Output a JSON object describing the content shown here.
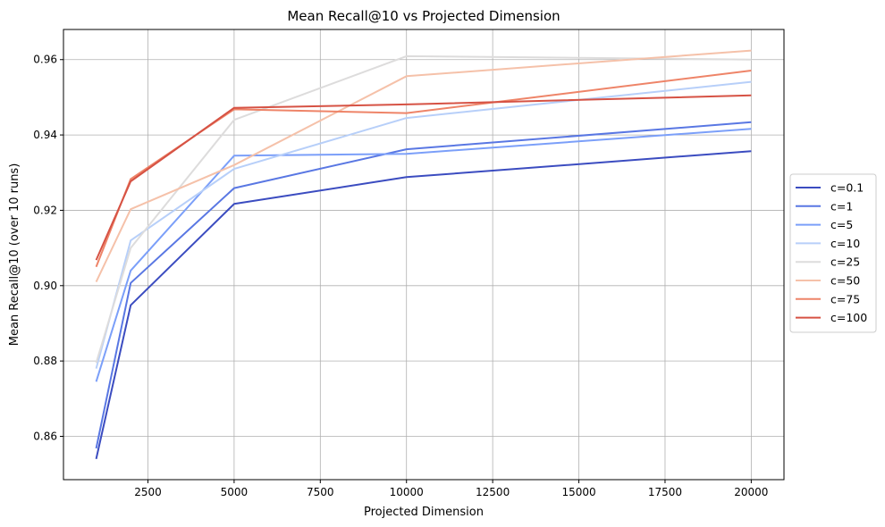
{
  "chart_data": {
    "type": "line",
    "title": "Mean Recall@10 vs Projected Dimension",
    "xlabel": "Projected Dimension",
    "ylabel": "Mean Recall@10 (over 10 runs)",
    "x": [
      1000,
      2000,
      5000,
      10000,
      20000
    ],
    "xlim": [
      50,
      20950
    ],
    "ylim": [
      0.8485,
      0.968
    ],
    "xticks": [
      2500,
      5000,
      7500,
      10000,
      12500,
      15000,
      17500,
      20000
    ],
    "yticks": [
      0.86,
      0.88,
      0.9,
      0.92,
      0.94,
      0.96
    ],
    "xtick_labels": [
      "2500",
      "5000",
      "7500",
      "10000",
      "12500",
      "15000",
      "17500",
      "20000"
    ],
    "ytick_labels": [
      "0.86",
      "0.88",
      "0.90",
      "0.92",
      "0.94",
      "0.96"
    ],
    "grid": true,
    "legend_position": "right",
    "series": [
      {
        "name": "c=0.1",
        "color": "#3b4cc0",
        "values": [
          0.854,
          0.8948,
          0.9217,
          0.9288,
          0.9357
        ]
      },
      {
        "name": "c=1",
        "color": "#5977e3",
        "values": [
          0.8568,
          0.9007,
          0.9259,
          0.9362,
          0.9434
        ]
      },
      {
        "name": "c=5",
        "color": "#7b9ff9",
        "values": [
          0.8745,
          0.904,
          0.9345,
          0.935,
          0.9416
        ]
      },
      {
        "name": "c=10",
        "color": "#b7cff9",
        "values": [
          0.878,
          0.912,
          0.931,
          0.9445,
          0.9541
        ]
      },
      {
        "name": "c=25",
        "color": "#dddcdc",
        "values": [
          0.8795,
          0.91,
          0.944,
          0.9609,
          0.96
        ]
      },
      {
        "name": "c=50",
        "color": "#f5c1a9",
        "values": [
          0.901,
          0.9203,
          0.932,
          0.9556,
          0.9624
        ]
      },
      {
        "name": "c=75",
        "color": "#ee8468",
        "values": [
          0.905,
          0.9283,
          0.9468,
          0.9458,
          0.9571
        ]
      },
      {
        "name": "c=100",
        "color": "#d65244",
        "values": [
          0.9068,
          0.9277,
          0.9472,
          0.9481,
          0.9505
        ]
      }
    ]
  }
}
